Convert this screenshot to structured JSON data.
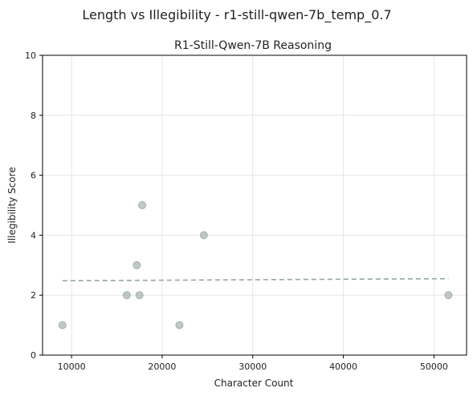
{
  "chart_data": {
    "type": "scatter",
    "suptitle": "Length vs Illegibility - r1-still-qwen-7b_temp_0.7",
    "title": "R1-Still-Qwen-7B Reasoning",
    "xlabel": "Character Count",
    "ylabel": "Illegibility Score",
    "xlim": [
      6800,
      53600
    ],
    "ylim": [
      0,
      10
    ],
    "xticks": [
      10000,
      20000,
      30000,
      40000,
      50000
    ],
    "yticks": [
      0,
      2,
      4,
      6,
      8,
      10
    ],
    "grid": true,
    "points": [
      {
        "x": 9000,
        "y": 1
      },
      {
        "x": 16100,
        "y": 2
      },
      {
        "x": 17200,
        "y": 3
      },
      {
        "x": 17500,
        "y": 2
      },
      {
        "x": 17800,
        "y": 5
      },
      {
        "x": 21900,
        "y": 1
      },
      {
        "x": 24600,
        "y": 4
      },
      {
        "x": 51600,
        "y": 2
      }
    ],
    "trendline": {
      "x": [
        9000,
        51600
      ],
      "y": [
        2.48,
        2.55
      ]
    },
    "colors": {
      "points": "#95a5a6",
      "trendline": "#95a5a6",
      "grid": "#e6e6e6",
      "axis": "#000000"
    }
  }
}
